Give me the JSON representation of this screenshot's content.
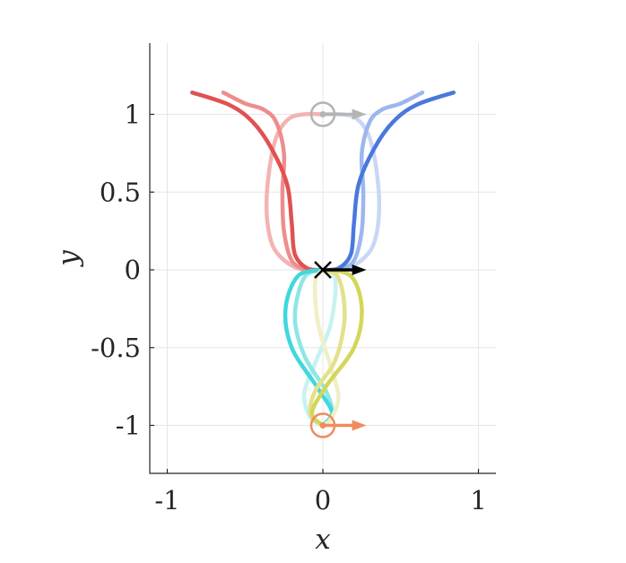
{
  "chart_data": {
    "type": "line",
    "xlabel": "x",
    "ylabel": "y",
    "xlim": [
      -1.1,
      1.1
    ],
    "ylim": [
      -1.32,
      1.45
    ],
    "grid": true,
    "x_ticks": [
      {
        "value": -1,
        "label": "-1"
      },
      {
        "value": 0,
        "label": "0"
      },
      {
        "value": 1,
        "label": "1"
      }
    ],
    "y_ticks": [
      {
        "value": 1,
        "label": "1"
      },
      {
        "value": 0.5,
        "label": "0.5"
      },
      {
        "value": 0,
        "label": "0"
      },
      {
        "value": -0.5,
        "label": "-0.5"
      },
      {
        "value": -1,
        "label": "-1"
      }
    ],
    "series": [
      {
        "color": "#f4b3b3",
        "points": [
          [
            0.0,
            1.0
          ],
          [
            -0.12,
            1.0
          ],
          [
            -0.22,
            0.97
          ],
          [
            -0.3,
            0.85
          ],
          [
            -0.35,
            0.6
          ],
          [
            -0.36,
            0.35
          ],
          [
            -0.32,
            0.15
          ],
          [
            -0.22,
            0.04
          ],
          [
            -0.12,
            0.0
          ],
          [
            0.0,
            0.0
          ]
        ]
      },
      {
        "color": "#ee8d8d",
        "points": [
          [
            -0.64,
            1.14
          ],
          [
            -0.5,
            1.07
          ],
          [
            -0.38,
            1.03
          ],
          [
            -0.3,
            0.95
          ],
          [
            -0.25,
            0.75
          ],
          [
            -0.26,
            0.5
          ],
          [
            -0.25,
            0.25
          ],
          [
            -0.2,
            0.06
          ],
          [
            -0.1,
            0.0
          ],
          [
            0.0,
            0.0
          ]
        ]
      },
      {
        "color": "#e05252",
        "points": [
          [
            -0.84,
            1.14
          ],
          [
            -0.6,
            1.06
          ],
          [
            -0.45,
            0.95
          ],
          [
            -0.33,
            0.78
          ],
          [
            -0.23,
            0.55
          ],
          [
            -0.2,
            0.3
          ],
          [
            -0.18,
            0.1
          ],
          [
            -0.1,
            0.01
          ],
          [
            0.0,
            0.0
          ]
        ]
      },
      {
        "color": "#c9d6f6",
        "points": [
          [
            0.0,
            1.0
          ],
          [
            0.12,
            1.0
          ],
          [
            0.22,
            0.97
          ],
          [
            0.3,
            0.85
          ],
          [
            0.35,
            0.6
          ],
          [
            0.36,
            0.35
          ],
          [
            0.32,
            0.15
          ],
          [
            0.22,
            0.04
          ],
          [
            0.12,
            0.0
          ],
          [
            0.0,
            0.0
          ]
        ]
      },
      {
        "color": "#9cb6ee",
        "points": [
          [
            0.64,
            1.14
          ],
          [
            0.5,
            1.07
          ],
          [
            0.38,
            1.03
          ],
          [
            0.3,
            0.95
          ],
          [
            0.25,
            0.75
          ],
          [
            0.26,
            0.5
          ],
          [
            0.25,
            0.25
          ],
          [
            0.2,
            0.06
          ],
          [
            0.1,
            0.0
          ],
          [
            0.0,
            0.0
          ]
        ]
      },
      {
        "color": "#4a78dd",
        "points": [
          [
            0.84,
            1.14
          ],
          [
            0.6,
            1.06
          ],
          [
            0.45,
            0.95
          ],
          [
            0.33,
            0.78
          ],
          [
            0.23,
            0.55
          ],
          [
            0.2,
            0.3
          ],
          [
            0.18,
            0.1
          ],
          [
            0.1,
            0.01
          ],
          [
            0.0,
            0.0
          ]
        ]
      },
      {
        "color": "#c7f2f2",
        "points": [
          [
            0.0,
            0.0
          ],
          [
            0.08,
            -0.06
          ],
          [
            0.05,
            -0.35
          ],
          [
            -0.05,
            -0.6
          ],
          [
            -0.12,
            -0.8
          ],
          [
            -0.08,
            -0.95
          ],
          [
            0.0,
            -1.0
          ]
        ]
      },
      {
        "color": "#8ee6e6",
        "points": [
          [
            0.0,
            0.0
          ],
          [
            -0.12,
            -0.05
          ],
          [
            -0.18,
            -0.3
          ],
          [
            -0.12,
            -0.55
          ],
          [
            0.02,
            -0.78
          ],
          [
            0.06,
            -0.92
          ],
          [
            0.0,
            -1.0
          ]
        ]
      },
      {
        "color": "#3fd8dd",
        "points": [
          [
            0.0,
            0.0
          ],
          [
            -0.16,
            -0.04
          ],
          [
            -0.24,
            -0.25
          ],
          [
            -0.2,
            -0.5
          ],
          [
            -0.04,
            -0.75
          ],
          [
            0.06,
            -0.92
          ],
          [
            0.0,
            -1.0
          ]
        ]
      },
      {
        "color": "#f0efc6",
        "points": [
          [
            0.0,
            0.0
          ],
          [
            -0.05,
            -0.08
          ],
          [
            -0.03,
            -0.35
          ],
          [
            0.05,
            -0.62
          ],
          [
            0.1,
            -0.82
          ],
          [
            0.05,
            -0.96
          ],
          [
            0.0,
            -1.0
          ]
        ]
      },
      {
        "color": "#e3e18a",
        "points": [
          [
            0.0,
            0.0
          ],
          [
            0.1,
            -0.05
          ],
          [
            0.14,
            -0.3
          ],
          [
            0.08,
            -0.58
          ],
          [
            -0.05,
            -0.78
          ],
          [
            -0.08,
            -0.93
          ],
          [
            0.0,
            -1.0
          ]
        ]
      },
      {
        "color": "#d3d65a",
        "points": [
          [
            0.0,
            0.0
          ],
          [
            0.18,
            -0.04
          ],
          [
            0.25,
            -0.25
          ],
          [
            0.2,
            -0.5
          ],
          [
            0.02,
            -0.75
          ],
          [
            -0.07,
            -0.92
          ],
          [
            0.0,
            -1.0
          ]
        ]
      }
    ],
    "markers": [
      {
        "kind": "circle-arrow",
        "x": 0.0,
        "y": 1.0,
        "color": "#b4b4b4",
        "arrow_dx": 0.28
      },
      {
        "kind": "circle-arrow",
        "x": 0.0,
        "y": -1.0,
        "color": "#ee8c5e",
        "arrow_dx": 0.28
      },
      {
        "kind": "cross-arrow",
        "x": 0.0,
        "y": 0.0,
        "color": "#000000",
        "arrow_dx": 0.28
      }
    ]
  }
}
